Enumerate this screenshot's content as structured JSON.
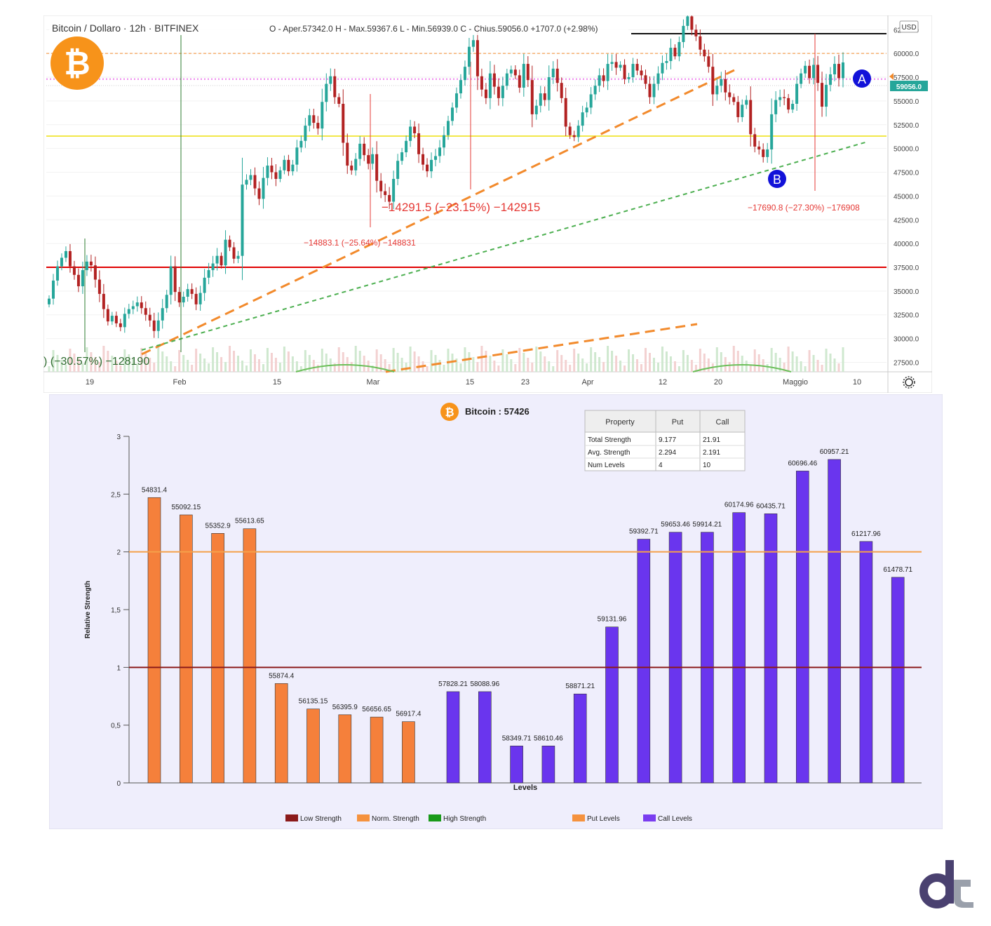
{
  "top_chart": {
    "header": {
      "symbol": "Bitcoin / Dollaro · 12h · BITFINEX",
      "ohlc": "O - Aper.57342.0  H - Max.59367.6  L - Min.56939.0  C - Chius.59056.0  +1707.0 (+2.98%)"
    },
    "currency_button": "USD",
    "price_badge": "59056.0",
    "marker_a": "A",
    "marker_b": "B",
    "y_ticks": [
      "62500.0",
      "60000.0",
      "57500.0",
      "55000.0",
      "52500.0",
      "50000.0",
      "47500.0",
      "45000.0",
      "42500.0",
      "40000.0",
      "37500.0",
      "35000.0",
      "32500.0",
      "30000.0",
      "27500.0"
    ],
    "x_ticks": [
      "19",
      "Feb",
      "15",
      "Mar",
      "15",
      "23",
      "Apr",
      "12",
      "20",
      "Maggio",
      "10"
    ],
    "annotations": {
      "left_drop": ") (−30.57%) −128190",
      "mar_drop": "−14883.1 (−25.64%) −148831",
      "mar_drop_big": "−14291.5 (−23.15%) −142915",
      "may_drop": "−17690.8 (−27.30%) −176908"
    },
    "colors": {
      "up": "#26a69a",
      "down": "#b22222",
      "support_red": "#e00000",
      "level_yellow": "#f2e84a",
      "trend_orange": "#f28a2c",
      "trend_green": "#4caf50",
      "marker_blue": "#1212d9"
    },
    "chart_data": {
      "type": "candlestick",
      "timeframe": "12h",
      "ylim": [
        26500,
        64000
      ],
      "closes": [
        34200,
        36100,
        37600,
        38500,
        39200,
        37600,
        36700,
        35500,
        37200,
        38100,
        37700,
        36200,
        34700,
        33100,
        31800,
        32400,
        31600,
        31200,
        32600,
        33100,
        33400,
        33800,
        33200,
        32500,
        31900,
        30800,
        31900,
        33200,
        34600,
        37600,
        34900,
        33800,
        34400,
        35200,
        34700,
        33600,
        34800,
        36400,
        37200,
        37900,
        38700,
        37700,
        40400,
        39600,
        38400,
        38700,
        46200,
        46700,
        47200,
        45800,
        44700,
        46900,
        48200,
        47500,
        46800,
        47700,
        48800,
        47600,
        48300,
        50100,
        50800,
        52400,
        53500,
        52700,
        52100,
        54900,
        56800,
        57600,
        55400,
        54700,
        50600,
        48200,
        47700,
        48900,
        50500,
        49300,
        48400,
        49400,
        46600,
        45500,
        45100,
        44400,
        46800,
        48700,
        49600,
        50800,
        52300,
        51600,
        49400,
        48300,
        47600,
        48800,
        49200,
        50100,
        51400,
        52900,
        54300,
        55800,
        57200,
        58600,
        60700,
        61400,
        57600,
        56200,
        55300,
        57900,
        56500,
        55300,
        56600,
        57900,
        58300,
        57700,
        56400,
        58900,
        57200,
        53600,
        54500,
        55800,
        55100,
        57500,
        58400,
        56900,
        55300,
        52300,
        51400,
        51200,
        52400,
        53800,
        54300,
        55700,
        56600,
        57700,
        57100,
        58900,
        59100,
        58500,
        58800,
        57300,
        57500,
        58900,
        58200,
        57700,
        56800,
        55400,
        56800,
        57900,
        59000,
        59200,
        60600,
        59700,
        61200,
        62900,
        63900,
        62500,
        61800,
        60400,
        59700,
        58600,
        55700,
        56600,
        57300,
        55900,
        55400,
        54900,
        53300,
        54600,
        55100,
        51500,
        50200,
        49900,
        49100,
        49900,
        53600,
        55100,
        55400,
        55300,
        54100,
        54700,
        56800,
        57900,
        58700,
        57400,
        58800,
        56900,
        54400,
        56700,
        57800,
        58900,
        57400,
        59056
      ],
      "levels": {
        "support": 37500,
        "yellow": 51300,
        "orange_dashed": 60000,
        "pink_dotted": 57300,
        "black_top": 64000
      }
    }
  },
  "bottom_chart": {
    "title": "Bitcoin : 57426",
    "xlabel": "Levels",
    "ylabel": "Relative Strength",
    "y_ticks": [
      "0",
      "0,5",
      "1",
      "1,5",
      "2",
      "2,5",
      "3"
    ],
    "table": {
      "headers": [
        "Property",
        "Put",
        "Call"
      ],
      "rows": [
        [
          "Total Strength",
          "9.177",
          "21.91"
        ],
        [
          "Avg. Strength",
          "2.294",
          "2.191"
        ],
        [
          "Num Levels",
          "4",
          "10"
        ]
      ]
    },
    "legend": [
      {
        "label": "Low Strength",
        "color": "#8b1a1a"
      },
      {
        "label": "Norm. Strength",
        "color": "#f5923e"
      },
      {
        "label": "High Strength",
        "color": "#1a9a1a"
      },
      {
        "label": "Put Levels",
        "color": "#f5923e"
      },
      {
        "label": "Call Levels",
        "color": "#7a3df0"
      }
    ],
    "colors": {
      "put": "#f5803b",
      "call": "#6a35ee",
      "low_line": "#8b1a1a",
      "norm_line": "#f5a04a",
      "bg": "#efeefc"
    },
    "chart_data": {
      "type": "bar",
      "ylim": [
        0,
        3
      ],
      "reference_lines": {
        "low": 1,
        "norm": 2
      },
      "put_series": {
        "name": "Put Levels",
        "categories": [
          "54831.4",
          "55092.15",
          "55352.9",
          "55613.65",
          "55874.4",
          "56135.15",
          "56395.9",
          "56656.65",
          "56917.4"
        ],
        "values": [
          2.47,
          2.32,
          2.16,
          2.2,
          0.86,
          0.64,
          0.59,
          0.57,
          0.53
        ]
      },
      "call_series": {
        "name": "Call Levels",
        "categories": [
          "57828.21",
          "58088.96",
          "58349.71",
          "58610.46",
          "58871.21",
          "59131.96",
          "59392.71",
          "59653.46",
          "59914.21",
          "60174.96",
          "60435.71",
          "60696.46",
          "60957.21",
          "61217.96",
          "61478.71"
        ],
        "values": [
          0.79,
          0.79,
          0.32,
          0.32,
          0.77,
          1.35,
          2.11,
          2.17,
          2.17,
          2.34,
          2.33,
          2.7,
          2.8,
          2.09,
          1.78
        ]
      }
    }
  }
}
